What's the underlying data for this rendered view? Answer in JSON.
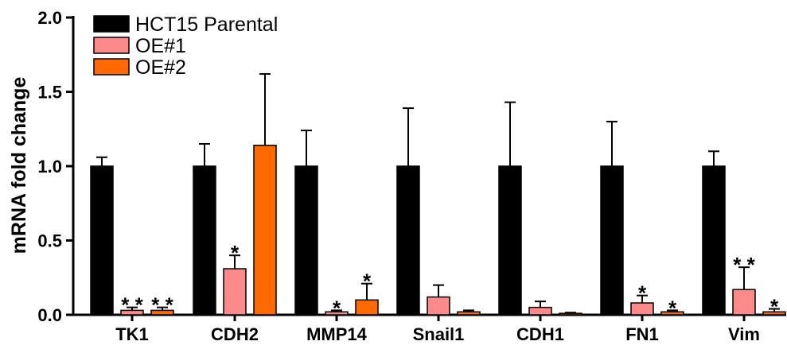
{
  "chart_data": {
    "type": "bar",
    "ylabel": "mRNA fold change",
    "ylim": [
      0,
      2.0
    ],
    "yticks": [
      "0.0",
      "0.5",
      "1.0",
      "1.5",
      "2.0"
    ],
    "categories": [
      "TK1",
      "CDH2",
      "MMP14",
      "Snail1",
      "CDH1",
      "FN1",
      "Vim"
    ],
    "legend_position": "top-left",
    "series": [
      {
        "name": "HCT15 Parental",
        "color": "#000000",
        "values": [
          1.0,
          1.0,
          1.0,
          1.0,
          1.0,
          1.0,
          1.0
        ],
        "errors": [
          0.06,
          0.15,
          0.24,
          0.39,
          0.43,
          0.3,
          0.1
        ],
        "significance": [
          "",
          "",
          "",
          "",
          "",
          "",
          ""
        ]
      },
      {
        "name": "OE#1",
        "color": "#FC8A8A",
        "values": [
          0.03,
          0.31,
          0.02,
          0.12,
          0.05,
          0.08,
          0.17
        ],
        "errors": [
          0.02,
          0.09,
          0.01,
          0.08,
          0.04,
          0.05,
          0.15
        ],
        "significance": [
          "**",
          "*",
          "*",
          "",
          "",
          "*",
          "**"
        ]
      },
      {
        "name": "OE#2",
        "color": "#FF6A00",
        "values": [
          0.03,
          1.14,
          0.1,
          0.02,
          0.01,
          0.02,
          0.02
        ],
        "errors": [
          0.02,
          0.48,
          0.11,
          0.01,
          0.005,
          0.01,
          0.02
        ],
        "significance": [
          "**",
          "",
          "*",
          "",
          "",
          "*",
          "*"
        ]
      }
    ]
  }
}
